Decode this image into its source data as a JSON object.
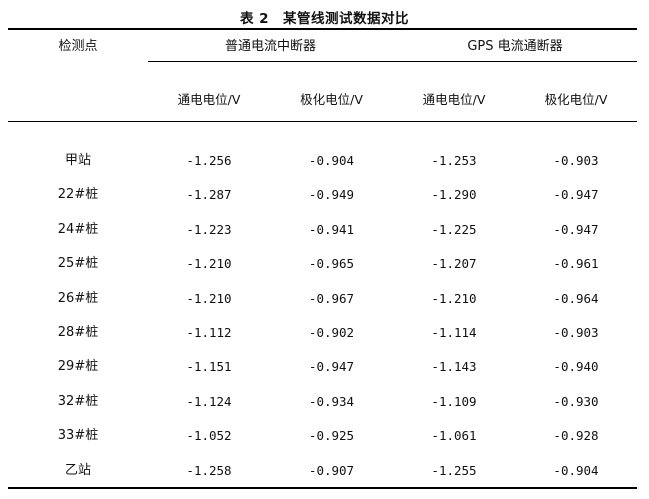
{
  "table": {
    "title": "表 2　某管线测试数据对比",
    "header": {
      "station": "检测点",
      "group_normal": "普通电流中断器",
      "group_gps": "GPS 电流通断器",
      "sub": [
        "通电电位/V",
        "极化电位/V",
        "通电电位/V",
        "极化电位/V"
      ]
    },
    "rows": [
      {
        "station": "甲站",
        "v": [
          "-1.256",
          "-0.904",
          "-1.253",
          "-0.903"
        ]
      },
      {
        "station": "22#桩",
        "v": [
          "-1.287",
          "-0.949",
          "-1.290",
          "-0.947"
        ]
      },
      {
        "station": "24#桩",
        "v": [
          "-1.223",
          "-0.941",
          "-1.225",
          "-0.947"
        ]
      },
      {
        "station": "25#桩",
        "v": [
          "-1.210",
          "-0.965",
          "-1.207",
          "-0.961"
        ]
      },
      {
        "station": "26#桩",
        "v": [
          "-1.210",
          "-0.967",
          "-1.210",
          "-0.964"
        ]
      },
      {
        "station": "28#桩",
        "v": [
          "-1.112",
          "-0.902",
          "-1.114",
          "-0.903"
        ]
      },
      {
        "station": "29#桩",
        "v": [
          "-1.151",
          "-0.947",
          "-1.143",
          "-0.940"
        ]
      },
      {
        "station": "32#桩",
        "v": [
          "-1.124",
          "-0.934",
          "-1.109",
          "-0.930"
        ]
      },
      {
        "station": "33#桩",
        "v": [
          "-1.052",
          "-0.925",
          "-1.061",
          "-0.928"
        ]
      },
      {
        "station": "乙站",
        "v": [
          "-1.258",
          "-0.907",
          "-1.255",
          "-0.904"
        ]
      }
    ]
  }
}
